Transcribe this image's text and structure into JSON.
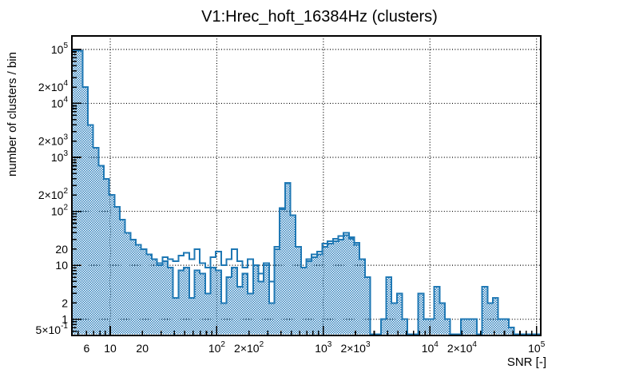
{
  "chart_data": {
    "type": "histogram",
    "title": "V1:Hrec_hoft_16384Hz (clusters)",
    "xlabel": "SNR [-]",
    "ylabel": "number of clusters / bin",
    "x_scale": "log",
    "y_scale": "log",
    "xlim": [
      4.4,
      110000
    ],
    "ylim": [
      0.5,
      178000
    ],
    "x_log_range": [
      0.64,
      5.04
    ],
    "y_log_range": [
      -0.301,
      5.25
    ],
    "grid": "dotted-at-decades",
    "x_grid_decades": [
      1,
      2,
      3,
      4,
      5
    ],
    "y_grid_decades": [
      0,
      1,
      2,
      3,
      4,
      5
    ],
    "x_ticks": [
      {
        "v": 6,
        "label": "6"
      },
      {
        "v": 10,
        "label": "10"
      },
      {
        "v": 20,
        "label": "20"
      },
      {
        "v": 100,
        "label": "10^2"
      },
      {
        "v": 200,
        "label": "2×10^2"
      },
      {
        "v": 1000,
        "label": "10^3"
      },
      {
        "v": 2000,
        "label": "2×10^3"
      },
      {
        "v": 10000,
        "label": "10^4"
      },
      {
        "v": 20000,
        "label": "2×10^4"
      },
      {
        "v": 100000,
        "label": "10^5"
      }
    ],
    "y_ticks": [
      {
        "v": 100000,
        "label": "10^5"
      },
      {
        "v": 20000,
        "label": "2×10^4"
      },
      {
        "v": 10000,
        "label": "10^4"
      },
      {
        "v": 2000,
        "label": "2×10^3"
      },
      {
        "v": 1000,
        "label": "10^3"
      },
      {
        "v": 200,
        "label": "2×10^2"
      },
      {
        "v": 100,
        "label": "10^2"
      },
      {
        "v": 20,
        "label": "20"
      },
      {
        "v": 10,
        "label": "10"
      },
      {
        "v": 2,
        "label": "2"
      },
      {
        "v": 1,
        "label": "1"
      },
      {
        "v": 0.5,
        "label": "5×10^-1"
      }
    ],
    "bin_log10_start": 0.64,
    "bin_log10_width": 0.05,
    "series": [
      {
        "name": "clusters-hatched-fill",
        "style": "hatched-fill-step",
        "color": "#1f78b4",
        "values": [
          97000,
          95000,
          20000,
          4000,
          1500,
          700,
          400,
          200,
          120,
          70,
          40,
          30,
          24,
          20,
          16,
          13,
          10,
          12,
          9,
          2.5,
          8,
          9,
          2.5,
          8,
          7,
          3,
          9,
          8,
          2,
          6,
          9,
          4,
          7,
          3,
          10,
          5,
          10,
          2,
          20,
          110,
          330,
          85,
          22,
          9,
          12,
          14,
          16,
          22,
          25,
          28,
          30,
          36,
          31,
          24,
          13,
          6,
          0,
          0,
          1,
          6,
          2,
          3,
          1,
          0,
          0,
          3,
          1,
          1,
          4,
          2,
          1,
          0,
          0,
          1,
          1,
          1,
          0,
          4,
          2,
          2.5,
          1,
          1,
          0.7,
          0,
          0,
          0,
          0,
          0
        ]
      },
      {
        "name": "clusters-open-outline",
        "style": "open-step",
        "color": "#1f78b4",
        "values": [
          97000,
          95000,
          20000,
          4000,
          1500,
          700,
          400,
          200,
          120,
          70,
          40,
          30,
          24,
          20,
          16,
          13,
          11,
          14,
          13,
          12,
          15,
          17,
          13,
          20,
          11,
          9,
          14,
          18,
          10,
          13,
          20,
          12,
          9,
          13,
          10,
          7,
          11,
          5,
          22,
          115,
          335,
          85,
          22,
          9,
          13,
          16,
          18,
          25,
          28,
          31,
          35,
          40,
          33,
          26,
          13,
          6,
          0,
          0,
          1,
          6,
          2,
          3,
          1,
          0,
          0,
          3,
          1,
          1,
          4,
          2,
          1,
          0,
          0,
          1,
          1,
          1,
          0,
          4,
          2,
          2.5,
          1,
          1,
          0.7,
          0,
          0,
          0,
          0,
          0
        ]
      }
    ],
    "colors": {
      "line": "#1f78b4",
      "fill": "#2f80bd",
      "frame": "#000000",
      "grid": "#000000",
      "background": "#ffffff"
    }
  }
}
